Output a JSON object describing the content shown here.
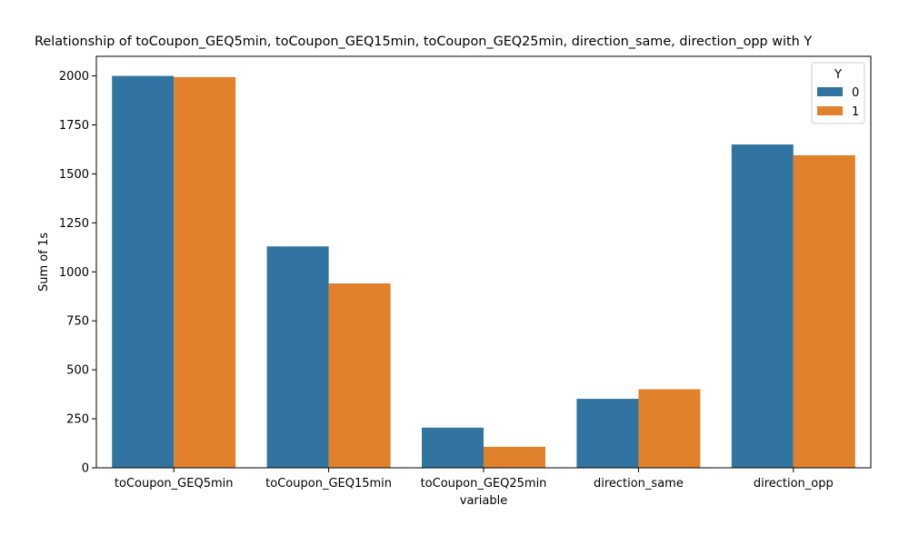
{
  "chart_data": {
    "type": "bar",
    "title": "Relationship of toCoupon_GEQ5min, toCoupon_GEQ15min, toCoupon_GEQ25min, direction_same, direction_opp with Y",
    "xlabel": "variable",
    "ylabel": "Sum of 1s",
    "categories": [
      "toCoupon_GEQ5min",
      "toCoupon_GEQ15min",
      "toCoupon_GEQ25min",
      "direction_same",
      "direction_opp"
    ],
    "series": [
      {
        "name": "0",
        "color": "#3274a1",
        "values": [
          2000,
          1130,
          205,
          352,
          1650
        ]
      },
      {
        "name": "1",
        "color": "#e1812c",
        "values": [
          1994,
          941,
          107,
          401,
          1595
        ]
      }
    ],
    "ylim": [
      0,
      2100
    ],
    "yticks": [
      0,
      250,
      500,
      750,
      1000,
      1250,
      1500,
      1750,
      2000
    ],
    "legend": {
      "title": "Y",
      "placement": "top-right"
    },
    "grid": false
  }
}
